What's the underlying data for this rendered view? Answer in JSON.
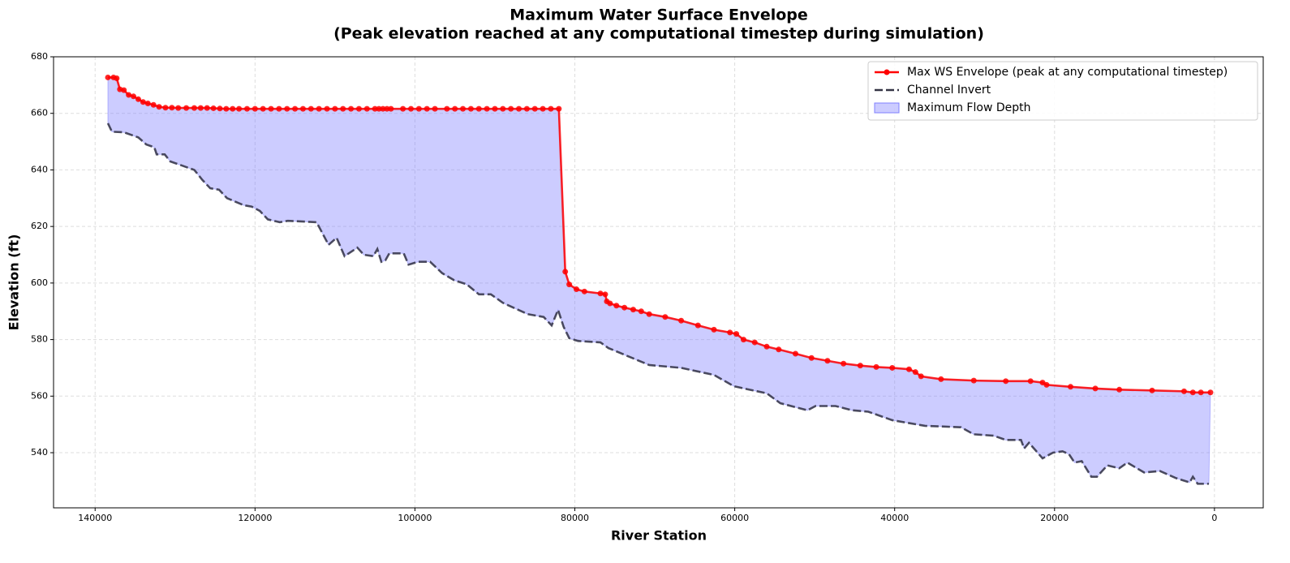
{
  "chart_data": {
    "type": "line",
    "title": "Maximum Water Surface Envelope",
    "subtitle": "(Peak elevation reached at any computational timestep during simulation)",
    "xlabel": "River Station",
    "ylabel": "Elevation (ft)",
    "xlim": [
      145200,
      -6100
    ],
    "ylim": [
      520.5,
      680
    ],
    "xticks": [
      140000,
      120000,
      100000,
      80000,
      60000,
      40000,
      20000,
      0
    ],
    "yticks": [
      540,
      560,
      580,
      600,
      620,
      640,
      660,
      680
    ],
    "grid": true,
    "legend": "upper right",
    "series": [
      {
        "name": "Max WS Envelope (peak at any computational timestep)",
        "color": "#ff0000",
        "style": "solid",
        "markers": true,
        "x": [
          138400,
          137700,
          137300,
          136900,
          136400,
          135800,
          135200,
          134600,
          134000,
          133400,
          132700,
          132000,
          131200,
          130400,
          129600,
          128600,
          127600,
          126800,
          126000,
          125200,
          124400,
          123600,
          122800,
          122000,
          121000,
          120000,
          119000,
          118000,
          117000,
          116000,
          115000,
          114000,
          113000,
          112000,
          111000,
          110000,
          109000,
          108000,
          107000,
          106000,
          105000,
          104500,
          104000,
          103500,
          103000,
          101500,
          100500,
          99500,
          98500,
          97500,
          96000,
          95000,
          94000,
          93000,
          92000,
          91000,
          90000,
          89000,
          88000,
          87000,
          86000,
          85000,
          84000,
          83000,
          82000,
          81200,
          80700,
          79800,
          78800,
          76800,
          76200,
          76000,
          75600,
          74800,
          73800,
          72700,
          71700,
          70700,
          68700,
          66700,
          64600,
          62600,
          60600,
          59800,
          58900,
          57500,
          56000,
          54500,
          52400,
          50400,
          48400,
          46400,
          44300,
          42300,
          40300,
          38200,
          37400,
          36700,
          34200,
          30100,
          26100,
          23000,
          21500,
          21000,
          18000,
          14900,
          11900,
          7800,
          3800,
          2700,
          1700,
          500
        ],
        "values": [
          672.7,
          672.7,
          672.4,
          668.5,
          668.2,
          666.5,
          666,
          665,
          664,
          663.5,
          663,
          662.3,
          662,
          662,
          661.9,
          661.9,
          661.9,
          661.9,
          661.9,
          661.8,
          661.7,
          661.6,
          661.6,
          661.6,
          661.6,
          661.6,
          661.6,
          661.6,
          661.6,
          661.6,
          661.6,
          661.6,
          661.6,
          661.6,
          661.6,
          661.6,
          661.6,
          661.6,
          661.6,
          661.6,
          661.6,
          661.6,
          661.6,
          661.6,
          661.6,
          661.6,
          661.6,
          661.6,
          661.6,
          661.6,
          661.6,
          661.6,
          661.6,
          661.6,
          661.6,
          661.6,
          661.6,
          661.6,
          661.6,
          661.6,
          661.6,
          661.6,
          661.6,
          661.6,
          661.6,
          604,
          599.5,
          597.8,
          597,
          596.3,
          596,
          593.5,
          592.8,
          592,
          591.3,
          590.6,
          590,
          589,
          588,
          586.7,
          585,
          583.5,
          582.5,
          582,
          580,
          579,
          577.5,
          576.5,
          575,
          573.5,
          572.5,
          571.5,
          570.8,
          570.3,
          570,
          569.5,
          568.5,
          567,
          566,
          565.5,
          565.3,
          565.3,
          564.8,
          564,
          563.3,
          562.7,
          562.3,
          562,
          561.7,
          561.3,
          561.3,
          561.3
        ]
      },
      {
        "name": "Channel Invert",
        "color": "#333344",
        "style": "dashed",
        "markers": false,
        "x": [
          138400,
          137900,
          136400,
          134600,
          133600,
          132600,
          132300,
          131300,
          130600,
          129100,
          127600,
          126600,
          125600,
          124500,
          123500,
          121400,
          120400,
          119400,
          118400,
          116900,
          115900,
          112300,
          110800,
          109800,
          108800,
          107200,
          106400,
          105200,
          104700,
          104200,
          103700,
          103200,
          101400,
          100800,
          99600,
          98100,
          96600,
          95100,
          93500,
          92000,
          90500,
          89000,
          85900,
          83900,
          82900,
          82100,
          81400,
          80700,
          79600,
          76800,
          75800,
          70700,
          66700,
          62600,
          60100,
          58500,
          56000,
          54300,
          50900,
          49900,
          47400,
          45300,
          43300,
          40300,
          36200,
          31700,
          30100,
          27600,
          26100,
          24200,
          23800,
          23200,
          21500,
          20200,
          19000,
          18200,
          17500,
          16600,
          15400,
          14700,
          13400,
          11900,
          10900,
          8800,
          6800,
          4800,
          3100,
          2700,
          2100,
          700
        ],
        "values": [
          656.5,
          653.5,
          653.3,
          651.5,
          649,
          648,
          645.5,
          645.5,
          643,
          641.5,
          640,
          636.5,
          633.5,
          633,
          630,
          627.5,
          627,
          625.5,
          622.5,
          621.5,
          622,
          621.5,
          613.5,
          616,
          609.5,
          612.5,
          610,
          609.5,
          612,
          607.5,
          608,
          610.5,
          610.5,
          606.5,
          607.5,
          607.5,
          603.5,
          601,
          599.5,
          596,
          596,
          593,
          589,
          588,
          585,
          590.5,
          584.5,
          580.5,
          579.5,
          579,
          577,
          571,
          570,
          567.5,
          563.5,
          562.5,
          561,
          557.5,
          555,
          556.5,
          556.5,
          555,
          554.5,
          551.5,
          549.5,
          549,
          546.5,
          546,
          544.5,
          544.5,
          541.5,
          543.5,
          538,
          540,
          540.5,
          539.5,
          536.5,
          537,
          531.5,
          531.5,
          535.5,
          534.5,
          536.5,
          533,
          533.5,
          531,
          529.5,
          531.5,
          529,
          529
        ]
      }
    ],
    "fill": {
      "name": "Maximum Flow Depth",
      "color": "#8080ff"
    }
  }
}
